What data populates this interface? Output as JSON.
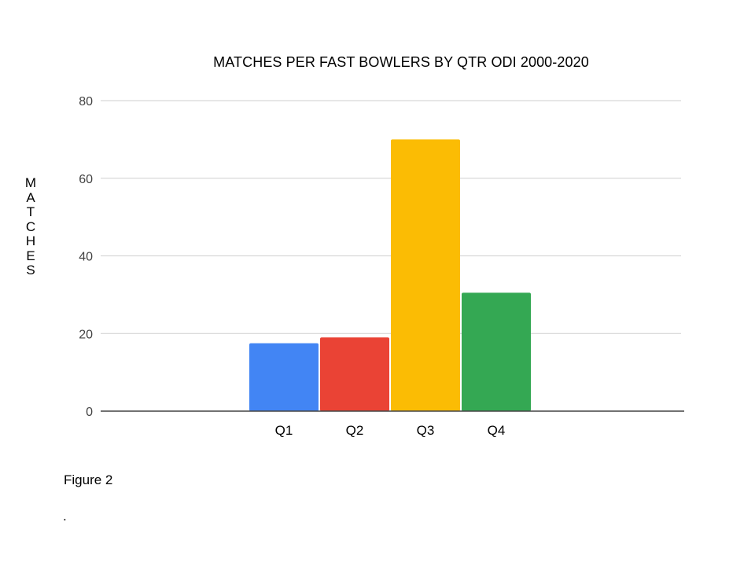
{
  "chart_data": {
    "type": "bar",
    "title": "MATCHES PER FAST BOWLERS BY QTR ODI 2000-2020",
    "xlabel": "",
    "ylabel": "MATCHES",
    "categories": [
      "Q1",
      "Q2",
      "Q3",
      "Q4"
    ],
    "values": [
      17.5,
      19,
      70,
      30.5
    ],
    "colors": [
      "#4285f4",
      "#ea4335",
      "#fbbc04",
      "#34a853"
    ],
    "ylim": [
      0,
      80
    ],
    "yticks": [
      0,
      20,
      40,
      60,
      80
    ],
    "grid": true,
    "legend": "none"
  },
  "caption": "Figure 2",
  "trailing_text": "."
}
